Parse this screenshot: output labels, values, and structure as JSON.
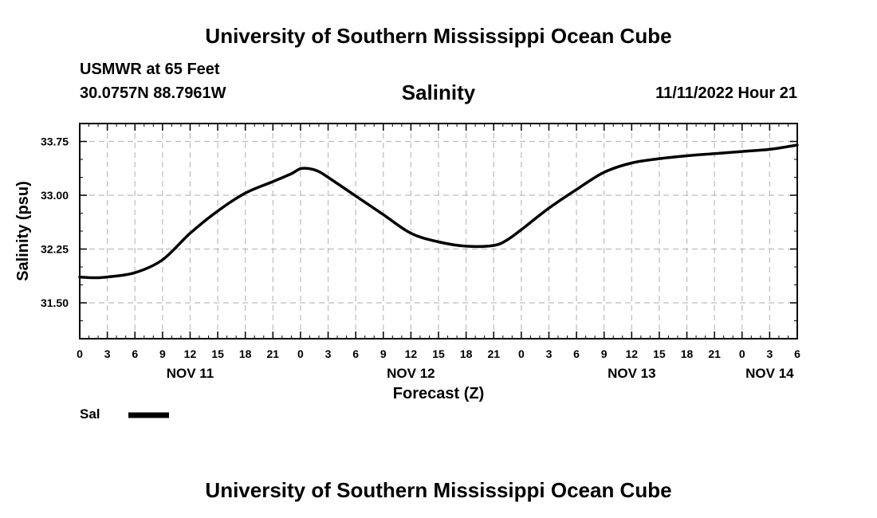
{
  "header": {
    "title": "University of Southern Mississippi Ocean Cube",
    "station": "USMWR at 65 Feet",
    "coords": "30.0757N  88.7961W",
    "variable": "Salinity",
    "datetime": "11/11/2022 Hour 21"
  },
  "footer": {
    "title": "University of Southern Mississippi Ocean Cube"
  },
  "chart_data": {
    "type": "line",
    "title": "Salinity",
    "xlabel": "Forecast (Z)",
    "ylabel": "Salinity (psu)",
    "xlim": [
      0,
      78
    ],
    "ylim": [
      31.0,
      34.0
    ],
    "yticks": [
      31.5,
      32.25,
      33.0,
      33.75
    ],
    "ytick_labels": [
      "31.50",
      "32.25",
      "33.00",
      "33.75"
    ],
    "xtick_hours": [
      0,
      3,
      6,
      9,
      12,
      15,
      18,
      21,
      24,
      27,
      30,
      33,
      36,
      39,
      42,
      45,
      48,
      51,
      54,
      57,
      60,
      63,
      66,
      69,
      72,
      75,
      78
    ],
    "xtick_labels": [
      "0",
      "3",
      "6",
      "9",
      "12",
      "15",
      "18",
      "21",
      "0",
      "3",
      "6",
      "9",
      "12",
      "15",
      "18",
      "21",
      "0",
      "3",
      "6",
      "9",
      "12",
      "15",
      "18",
      "21",
      "0",
      "3",
      "6"
    ],
    "date_labels": [
      {
        "hour": 12,
        "label": "NOV 11"
      },
      {
        "hour": 36,
        "label": "NOV 12"
      },
      {
        "hour": 60,
        "label": "NOV 13"
      },
      {
        "hour": 75,
        "label": "NOV 14"
      }
    ],
    "grid": true,
    "series": [
      {
        "name": "Sal",
        "color": "#000000",
        "x": [
          0,
          1.5,
          3,
          6,
          9,
          12,
          15,
          18,
          21,
          23,
          24,
          25,
          26,
          27,
          30,
          33,
          36,
          39,
          42,
          45,
          46.5,
          48,
          51,
          54,
          57,
          60,
          63,
          66,
          69,
          72,
          75,
          78
        ],
        "values": [
          31.86,
          31.85,
          31.86,
          31.92,
          32.1,
          32.47,
          32.78,
          33.03,
          33.19,
          33.3,
          33.37,
          33.37,
          33.33,
          33.25,
          32.99,
          32.73,
          32.47,
          32.35,
          32.29,
          32.3,
          32.38,
          32.52,
          32.82,
          33.08,
          33.32,
          33.45,
          33.51,
          33.55,
          33.58,
          33.61,
          33.64,
          33.7
        ]
      }
    ],
    "legend": [
      {
        "label": "Sal",
        "color": "#000000"
      }
    ]
  }
}
